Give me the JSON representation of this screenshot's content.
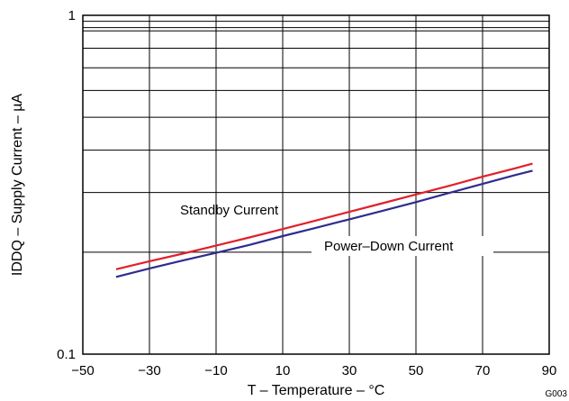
{
  "chart_data": {
    "type": "line",
    "title": "",
    "xlabel": "T – Temperature – °C",
    "ylabel": "IDDQ – Supply Current – µA",
    "xlim": [
      -50,
      90
    ],
    "ylim": [
      0.1,
      1
    ],
    "yscale": "log",
    "grid": true,
    "x_ticks": [
      -50,
      -30,
      -10,
      10,
      30,
      50,
      70,
      90
    ],
    "x_tick_labels": [
      "−50",
      "−30",
      "−10",
      "10",
      "30",
      "50",
      "70",
      "90"
    ],
    "y_ticks": [
      0.1,
      1
    ],
    "y_tick_labels": [
      "0.1",
      "1"
    ],
    "y_grid": [
      0.2,
      0.3,
      0.4,
      0.5,
      0.6,
      0.7,
      0.8,
      0.9
    ],
    "series": [
      {
        "name": "Standby Current",
        "color": "#e0202a",
        "x": [
          -40,
          -30,
          -20,
          -10,
          0,
          10,
          20,
          30,
          40,
          50,
          60,
          70,
          80,
          85
        ],
        "y": [
          0.178,
          0.188,
          0.198,
          0.209,
          0.221,
          0.234,
          0.248,
          0.263,
          0.279,
          0.296,
          0.314,
          0.334,
          0.354,
          0.365
        ]
      },
      {
        "name": "Power–Down Current",
        "color": "#2e2c8e",
        "x": [
          -40,
          -30,
          -20,
          -10,
          0,
          10,
          20,
          30,
          40,
          50,
          60,
          70,
          80,
          85
        ],
        "y": [
          0.169,
          0.179,
          0.189,
          0.199,
          0.21,
          0.223,
          0.236,
          0.25,
          0.265,
          0.281,
          0.299,
          0.318,
          0.338,
          0.348
        ]
      }
    ]
  },
  "figure_id": "G003"
}
